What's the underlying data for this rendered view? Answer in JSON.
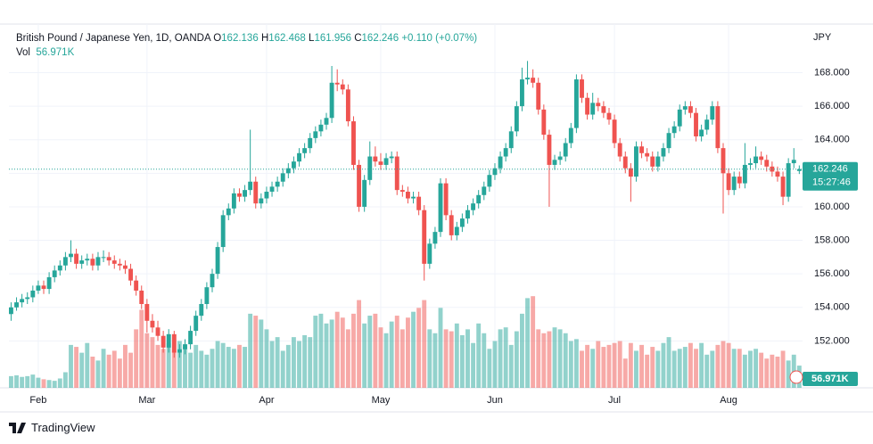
{
  "chart_data": {
    "type": "candlestick",
    "title": "British Pound / Japanese Yen, 1D, OANDA",
    "ohlc_letters": [
      "O",
      "H",
      "L",
      "C"
    ],
    "change_label": "+0.110 (+0.07%)",
    "currency": "JPY",
    "countdown": "15:27:46",
    "up_color": "#26a69a",
    "down_color": "#ef5350",
    "grid": true,
    "xlim": [
      -0.4,
      145.6
    ],
    "ylim": [
      149.2,
      170.9
    ],
    "xticks": [
      {
        "value": 5,
        "label": "Feb"
      },
      {
        "value": 25,
        "label": "Mar"
      },
      {
        "value": 47,
        "label": "Apr"
      },
      {
        "value": 68,
        "label": "May"
      },
      {
        "value": 89,
        "label": "Jun"
      },
      {
        "value": 111,
        "label": "Jul"
      },
      {
        "value": 132,
        "label": "Aug"
      }
    ],
    "yticks": [
      {
        "value": 152,
        "label": "152.000"
      },
      {
        "value": 154,
        "label": "154.000"
      },
      {
        "value": 156,
        "label": "156.000"
      },
      {
        "value": 158,
        "label": "158.000"
      },
      {
        "value": 160,
        "label": "160.000"
      },
      {
        "value": 162,
        "label": "162.000"
      },
      {
        "value": 164,
        "label": "164.000"
      },
      {
        "value": 166,
        "label": "166.000"
      },
      {
        "value": 168,
        "label": "168.000"
      }
    ],
    "ohlc": [
      [
        153.6,
        154.3,
        153.2,
        154.0
      ],
      [
        154.0,
        154.6,
        153.8,
        154.3
      ],
      [
        154.3,
        154.8,
        154.0,
        154.5
      ],
      [
        154.5,
        154.9,
        154.2,
        154.6
      ],
      [
        154.6,
        155.3,
        154.3,
        155.0
      ],
      [
        155.0,
        155.6,
        154.8,
        155.3
      ],
      [
        155.3,
        155.6,
        154.8,
        155.1
      ],
      [
        155.1,
        156.1,
        154.8,
        155.8
      ],
      [
        155.8,
        156.5,
        155.5,
        156.2
      ],
      [
        156.2,
        156.8,
        155.9,
        156.5
      ],
      [
        156.5,
        157.3,
        156.2,
        157.0
      ],
      [
        157.0,
        158.0,
        156.7,
        157.2
      ],
      [
        157.2,
        157.5,
        156.3,
        156.6
      ],
      [
        156.6,
        157.1,
        156.3,
        156.8
      ],
      [
        156.8,
        157.2,
        156.5,
        156.9
      ],
      [
        156.9,
        157.2,
        156.2,
        156.5
      ],
      [
        156.5,
        157.3,
        156.2,
        157.0
      ],
      [
        157.0,
        157.4,
        156.7,
        157.0
      ],
      [
        157.0,
        157.3,
        156.5,
        156.8
      ],
      [
        156.8,
        157.1,
        156.3,
        156.6
      ],
      [
        156.6,
        156.9,
        156.2,
        156.5
      ],
      [
        156.5,
        156.8,
        156.0,
        156.3
      ],
      [
        156.3,
        156.6,
        155.3,
        155.6
      ],
      [
        155.6,
        155.9,
        154.7,
        155.0
      ],
      [
        155.0,
        155.3,
        153.9,
        154.2
      ],
      [
        154.2,
        154.5,
        152.5,
        153.2
      ],
      [
        153.2,
        153.6,
        152.5,
        152.8
      ],
      [
        152.8,
        153.2,
        152.0,
        152.3
      ],
      [
        152.3,
        152.6,
        151.3,
        151.6
      ],
      [
        151.6,
        152.7,
        151.3,
        152.4
      ],
      [
        152.4,
        152.6,
        151.0,
        151.3
      ],
      [
        151.3,
        151.8,
        151.0,
        151.5
      ],
      [
        151.5,
        152.1,
        151.2,
        151.8
      ],
      [
        151.8,
        152.9,
        151.5,
        152.6
      ],
      [
        152.6,
        153.8,
        152.3,
        153.5
      ],
      [
        153.5,
        154.5,
        153.2,
        154.2
      ],
      [
        154.2,
        155.5,
        153.9,
        155.2
      ],
      [
        155.2,
        156.3,
        154.9,
        156.0
      ],
      [
        156.0,
        157.9,
        155.7,
        157.6
      ],
      [
        157.6,
        159.8,
        157.3,
        159.5
      ],
      [
        159.5,
        160.2,
        159.2,
        159.9
      ],
      [
        159.9,
        161.1,
        159.6,
        160.8
      ],
      [
        160.8,
        161.1,
        160.3,
        160.6
      ],
      [
        160.6,
        161.3,
        160.3,
        161.0
      ],
      [
        161.0,
        164.6,
        160.7,
        161.5
      ],
      [
        161.5,
        161.8,
        159.9,
        160.2
      ],
      [
        160.2,
        160.8,
        159.9,
        160.5
      ],
      [
        160.5,
        161.2,
        160.2,
        160.9
      ],
      [
        160.9,
        161.5,
        160.6,
        161.2
      ],
      [
        161.2,
        161.8,
        160.9,
        161.5
      ],
      [
        161.5,
        162.3,
        161.2,
        162.0
      ],
      [
        162.0,
        162.6,
        161.7,
        162.3
      ],
      [
        162.3,
        163.0,
        162.0,
        162.7
      ],
      [
        162.7,
        163.5,
        162.4,
        163.2
      ],
      [
        163.2,
        163.8,
        162.9,
        163.5
      ],
      [
        163.5,
        164.4,
        163.2,
        164.1
      ],
      [
        164.1,
        164.8,
        163.8,
        164.5
      ],
      [
        164.5,
        165.2,
        164.2,
        164.9
      ],
      [
        164.9,
        165.6,
        164.6,
        165.3
      ],
      [
        165.3,
        168.4,
        165.0,
        167.4
      ],
      [
        167.4,
        168.2,
        166.9,
        167.3
      ],
      [
        167.3,
        167.6,
        166.7,
        167.0
      ],
      [
        167.0,
        167.3,
        164.8,
        165.1
      ],
      [
        165.1,
        165.4,
        162.2,
        162.5
      ],
      [
        162.5,
        162.8,
        159.7,
        160.0
      ],
      [
        160.0,
        161.9,
        159.7,
        161.6
      ],
      [
        161.6,
        163.9,
        161.3,
        163.0
      ],
      [
        163.0,
        163.6,
        162.4,
        162.7
      ],
      [
        162.7,
        163.2,
        162.2,
        162.5
      ],
      [
        162.5,
        163.2,
        162.2,
        162.9
      ],
      [
        162.9,
        163.3,
        162.6,
        163.0
      ],
      [
        163.0,
        163.3,
        160.7,
        161.0
      ],
      [
        161.0,
        161.3,
        160.6,
        160.9
      ],
      [
        160.9,
        161.2,
        160.2,
        160.5
      ],
      [
        160.5,
        160.9,
        160.2,
        160.6
      ],
      [
        160.6,
        160.9,
        159.5,
        159.8
      ],
      [
        159.8,
        160.1,
        155.6,
        156.6
      ],
      [
        156.6,
        158.1,
        156.3,
        157.8
      ],
      [
        157.8,
        158.8,
        157.5,
        158.5
      ],
      [
        158.5,
        161.7,
        158.2,
        161.4
      ],
      [
        161.4,
        161.7,
        159.2,
        159.5
      ],
      [
        159.5,
        159.8,
        158.0,
        158.3
      ],
      [
        158.3,
        159.1,
        158.0,
        158.8
      ],
      [
        158.8,
        159.6,
        158.5,
        159.3
      ],
      [
        159.3,
        160.1,
        159.0,
        159.8
      ],
      [
        159.8,
        160.5,
        159.5,
        160.2
      ],
      [
        160.2,
        161.0,
        159.9,
        160.7
      ],
      [
        160.7,
        161.5,
        160.4,
        161.2
      ],
      [
        161.2,
        162.2,
        160.9,
        161.9
      ],
      [
        161.9,
        162.6,
        161.6,
        162.3
      ],
      [
        162.3,
        163.3,
        162.0,
        163.0
      ],
      [
        163.0,
        163.8,
        162.7,
        163.5
      ],
      [
        163.5,
        164.8,
        163.2,
        164.5
      ],
      [
        164.5,
        166.3,
        164.2,
        166.0
      ],
      [
        166.0,
        168.3,
        165.7,
        167.6
      ],
      [
        167.6,
        168.7,
        167.3,
        167.7
      ],
      [
        167.7,
        168.2,
        167.1,
        167.4
      ],
      [
        167.4,
        167.7,
        165.5,
        165.8
      ],
      [
        165.8,
        166.1,
        164.0,
        164.3
      ],
      [
        164.3,
        164.6,
        160.0,
        162.5
      ],
      [
        162.5,
        163.1,
        162.2,
        162.8
      ],
      [
        162.8,
        163.3,
        162.5,
        163.0
      ],
      [
        163.0,
        164.1,
        162.7,
        163.8
      ],
      [
        163.8,
        165.0,
        163.5,
        164.7
      ],
      [
        164.7,
        167.9,
        164.4,
        167.6
      ],
      [
        167.6,
        167.9,
        166.2,
        166.5
      ],
      [
        166.5,
        166.8,
        165.2,
        165.5
      ],
      [
        165.5,
        166.8,
        165.2,
        166.2
      ],
      [
        166.2,
        166.5,
        165.7,
        166.0
      ],
      [
        166.0,
        166.3,
        165.3,
        165.6
      ],
      [
        165.6,
        165.9,
        164.9,
        165.2
      ],
      [
        165.2,
        165.5,
        163.5,
        163.8
      ],
      [
        163.8,
        164.1,
        162.7,
        163.0
      ],
      [
        163.0,
        163.3,
        162.0,
        162.3
      ],
      [
        162.3,
        162.6,
        160.3,
        161.8
      ],
      [
        161.8,
        163.9,
        161.5,
        163.6
      ],
      [
        163.6,
        163.9,
        162.9,
        163.2
      ],
      [
        163.2,
        163.5,
        162.7,
        163.0
      ],
      [
        163.0,
        163.3,
        162.1,
        162.4
      ],
      [
        162.4,
        163.3,
        162.1,
        163.0
      ],
      [
        163.0,
        163.8,
        162.7,
        163.5
      ],
      [
        163.5,
        164.7,
        163.2,
        164.4
      ],
      [
        164.4,
        165.1,
        164.1,
        164.8
      ],
      [
        164.8,
        166.1,
        164.5,
        165.8
      ],
      [
        165.8,
        166.3,
        165.5,
        166.0
      ],
      [
        166.0,
        166.3,
        165.3,
        165.6
      ],
      [
        165.6,
        165.9,
        163.9,
        164.2
      ],
      [
        164.2,
        164.9,
        163.9,
        164.6
      ],
      [
        164.6,
        165.5,
        164.3,
        165.2
      ],
      [
        165.2,
        166.3,
        164.9,
        166.0
      ],
      [
        166.0,
        166.3,
        163.2,
        163.5
      ],
      [
        163.5,
        163.8,
        159.6,
        162.0
      ],
      [
        162.0,
        162.3,
        160.7,
        161.0
      ],
      [
        161.0,
        162.1,
        160.7,
        161.8
      ],
      [
        161.8,
        162.1,
        161.1,
        161.4
      ],
      [
        161.4,
        163.8,
        161.1,
        162.5
      ],
      [
        162.5,
        162.9,
        162.2,
        162.6
      ],
      [
        162.6,
        163.6,
        162.3,
        163.0
      ],
      [
        163.0,
        163.3,
        162.5,
        162.8
      ],
      [
        162.8,
        163.1,
        162.1,
        162.4
      ],
      [
        162.4,
        162.7,
        161.8,
        162.1
      ],
      [
        162.1,
        162.4,
        161.5,
        161.8
      ],
      [
        161.8,
        162.1,
        160.1,
        160.6
      ],
      [
        160.6,
        162.9,
        160.3,
        162.6
      ],
      [
        162.6,
        163.5,
        162.3,
        162.8
      ],
      [
        162.136,
        162.468,
        161.956,
        162.246
      ]
    ],
    "volume": {
      "name": "Vol",
      "vlim": [
        0,
        240
      ],
      "last_value_label": "56.971K",
      "values": [
        30,
        32,
        28,
        30,
        34,
        26,
        22,
        20,
        18,
        24,
        40,
        110,
        105,
        90,
        115,
        80,
        70,
        100,
        85,
        95,
        75,
        110,
        90,
        150,
        200,
        140,
        130,
        110,
        100,
        115,
        95,
        120,
        105,
        90,
        110,
        95,
        85,
        100,
        120,
        115,
        105,
        100,
        110,
        105,
        190,
        185,
        175,
        150,
        120,
        130,
        95,
        110,
        130,
        120,
        135,
        130,
        185,
        190,
        165,
        175,
        195,
        180,
        150,
        190,
        225,
        165,
        185,
        190,
        155,
        140,
        170,
        185,
        150,
        180,
        195,
        205,
        225,
        150,
        140,
        205,
        150,
        145,
        165,
        135,
        150,
        115,
        165,
        140,
        100,
        120,
        150,
        155,
        110,
        145,
        190,
        230,
        235,
        150,
        140,
        145,
        155,
        150,
        140,
        120,
        125,
        95,
        110,
        100,
        120,
        105,
        110,
        115,
        120,
        75,
        115,
        95,
        110,
        85,
        105,
        95,
        115,
        130,
        95,
        100,
        105,
        115,
        100,
        115,
        85,
        95,
        110,
        120,
        115,
        100,
        100,
        85,
        95,
        100,
        90,
        75,
        85,
        80,
        95,
        70,
        85,
        56.971
      ]
    }
  },
  "footer": {
    "brand": "TradingView"
  }
}
